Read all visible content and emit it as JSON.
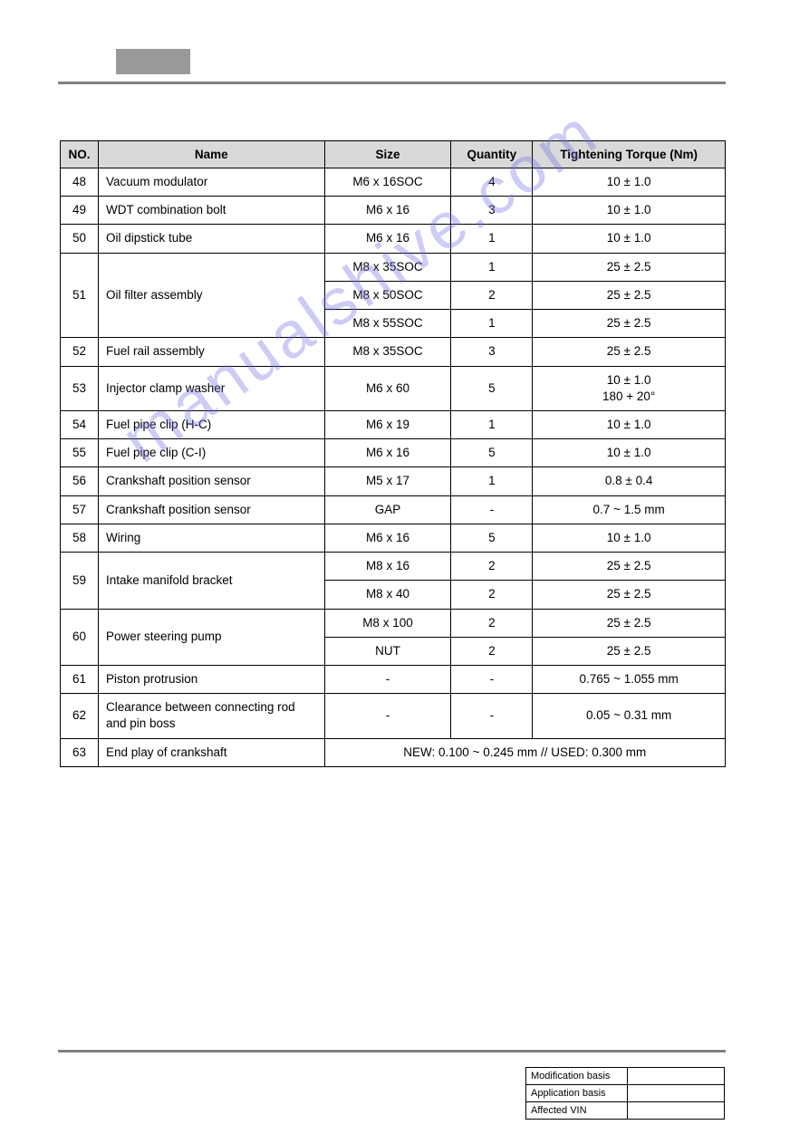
{
  "watermark_text": "manualshive.com",
  "table": {
    "headers": {
      "no": "NO.",
      "name": "Name",
      "size": "Size",
      "qty": "Quantity",
      "torque": "Tightening Torque (Nm)"
    },
    "rows": [
      {
        "no": "48",
        "name": "Vacuum modulator",
        "sub": [
          {
            "size": "M6 x 16SOC",
            "qty": "4",
            "tq": "10 ± 1.0"
          }
        ]
      },
      {
        "no": "49",
        "name": "WDT combination bolt",
        "sub": [
          {
            "size": "M6 x 16",
            "qty": "3",
            "tq": "10 ± 1.0"
          }
        ]
      },
      {
        "no": "50",
        "name": "Oil dipstick tube",
        "sub": [
          {
            "size": "M6 x 16",
            "qty": "1",
            "tq": "10 ± 1.0"
          }
        ]
      },
      {
        "no": "51",
        "name": "Oil filter assembly",
        "sub": [
          {
            "size": "M8 x 35SOC",
            "qty": "1",
            "tq": "25 ± 2.5"
          },
          {
            "size": "M8 x 50SOC",
            "qty": "2",
            "tq": "25 ± 2.5"
          },
          {
            "size": "M8 x 55SOC",
            "qty": "1",
            "tq": "25 ± 2.5"
          }
        ]
      },
      {
        "no": "52",
        "name": "Fuel rail assembly",
        "sub": [
          {
            "size": "M8 x 35SOC",
            "qty": "3",
            "tq": "25 ± 2.5"
          }
        ]
      },
      {
        "no": "53",
        "name": "Injector clamp washer",
        "sub": [
          {
            "size": "M6 x 60",
            "qty": "5",
            "tq": "10 ± 1.0\n180 + 20°"
          }
        ]
      },
      {
        "no": "54",
        "name": "Fuel pipe clip (H-C)",
        "sub": [
          {
            "size": "M6 x 19",
            "qty": "1",
            "tq": "10 ± 1.0"
          }
        ]
      },
      {
        "no": "55",
        "name": "Fuel pipe clip (C-I)",
        "sub": [
          {
            "size": "M6 x 16",
            "qty": "5",
            "tq": "10 ± 1.0"
          }
        ]
      },
      {
        "no": "56",
        "name": "Crankshaft position sensor",
        "sub": [
          {
            "size": "M5 x 17",
            "qty": "1",
            "tq": "0.8 ± 0.4"
          }
        ]
      },
      {
        "no": "57",
        "name": "Crankshaft position sensor",
        "sub": [
          {
            "size": "GAP",
            "qty": "-",
            "tq": "0.7 ~ 1.5 mm"
          }
        ]
      },
      {
        "no": "58",
        "name": "Wiring",
        "sub": [
          {
            "size": "M6 x 16",
            "qty": "5",
            "tq": "10 ± 1.0"
          }
        ]
      },
      {
        "no": "59",
        "name": "Intake manifold bracket",
        "sub": [
          {
            "size": "M8 x 16",
            "qty": "2",
            "tq": "25 ± 2.5"
          },
          {
            "size": "M8 x 40",
            "qty": "2",
            "tq": "25 ± 2.5"
          }
        ]
      },
      {
        "no": "60",
        "name": "Power steering pump",
        "sub": [
          {
            "size": "M8 x 100",
            "qty": "2",
            "tq": "25 ± 2.5"
          },
          {
            "size": "NUT",
            "qty": "2",
            "tq": "25 ± 2.5"
          }
        ]
      },
      {
        "no": "61",
        "name": "Piston protrusion",
        "sub": [
          {
            "size": "-",
            "qty": "-",
            "tq": "0.765 ~ 1.055 mm"
          }
        ]
      },
      {
        "no": "62",
        "name": "Clearance between connecting rod and pin boss",
        "sub": [
          {
            "size": "-",
            "qty": "-",
            "tq": "0.05 ~ 0.31 mm"
          }
        ]
      },
      {
        "no": "63",
        "name": "End play of crankshaft",
        "merged": "NEW: 0.100 ~ 0.245 mm // USED: 0.300 mm"
      }
    ]
  },
  "footer": {
    "rows": [
      {
        "label": "Modification basis",
        "value": ""
      },
      {
        "label": "Application basis",
        "value": ""
      },
      {
        "label": "Affected VIN",
        "value": ""
      }
    ]
  }
}
